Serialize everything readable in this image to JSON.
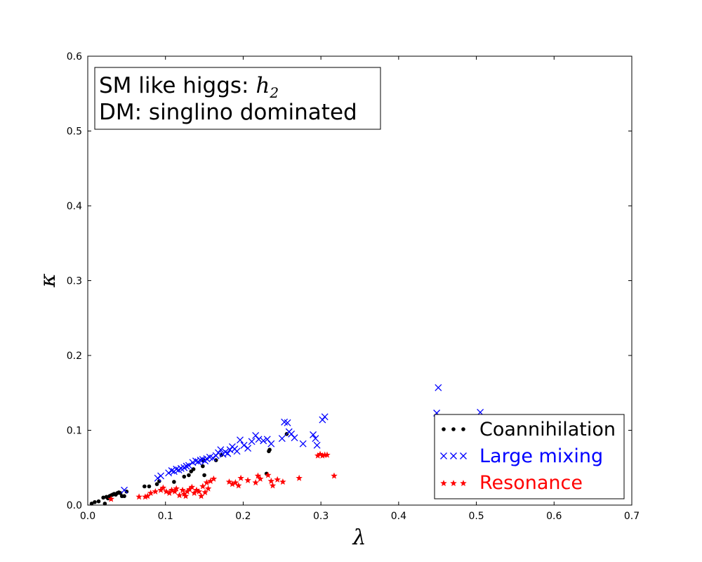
{
  "chart_data": {
    "type": "scatter",
    "title": "",
    "xlabel": "λ",
    "ylabel": "κ",
    "xlim": [
      0.0,
      0.7
    ],
    "ylim": [
      0.0,
      0.6
    ],
    "xticks": [
      "0.0",
      "0.1",
      "0.2",
      "0.3",
      "0.4",
      "0.5",
      "0.6",
      "0.7"
    ],
    "yticks": [
      "0.0",
      "0.1",
      "0.2",
      "0.3",
      "0.4",
      "0.5",
      "0.6"
    ],
    "grid": false,
    "annotation": {
      "line1_prefix": "SM like higgs: ",
      "line1_symbol": "h",
      "line1_subscript": "2",
      "line2": "DM: singlino dominated"
    },
    "legend": {
      "position": "lower-right",
      "entries": [
        "Coannihilation",
        "Large mixing",
        "Resonance"
      ]
    },
    "colors": {
      "Coannihilation": "#000000",
      "Large mixing": "#0000ff",
      "Resonance": "#ff0000"
    },
    "series": [
      {
        "name": "Coannihilation",
        "marker": "dot",
        "points": [
          [
            0.005,
            0.002
          ],
          [
            0.009,
            0.004
          ],
          [
            0.014,
            0.005
          ],
          [
            0.02,
            0.01
          ],
          [
            0.022,
            0.002
          ],
          [
            0.024,
            0.011
          ],
          [
            0.026,
            0.009
          ],
          [
            0.028,
            0.012
          ],
          [
            0.03,
            0.013
          ],
          [
            0.032,
            0.014
          ],
          [
            0.034,
            0.015
          ],
          [
            0.036,
            0.014
          ],
          [
            0.038,
            0.016
          ],
          [
            0.04,
            0.017
          ],
          [
            0.042,
            0.016
          ],
          [
            0.044,
            0.012
          ],
          [
            0.047,
            0.012
          ],
          [
            0.05,
            0.018
          ],
          [
            0.073,
            0.025
          ],
          [
            0.079,
            0.025
          ],
          [
            0.089,
            0.028
          ],
          [
            0.092,
            0.032
          ],
          [
            0.111,
            0.031
          ],
          [
            0.124,
            0.038
          ],
          [
            0.13,
            0.04
          ],
          [
            0.133,
            0.045
          ],
          [
            0.136,
            0.048
          ],
          [
            0.148,
            0.052
          ],
          [
            0.149,
            0.06
          ],
          [
            0.15,
            0.04
          ],
          [
            0.165,
            0.06
          ],
          [
            0.172,
            0.067
          ],
          [
            0.23,
            0.042
          ],
          [
            0.233,
            0.072
          ],
          [
            0.234,
            0.074
          ],
          [
            0.256,
            0.095
          ]
        ]
      },
      {
        "name": "Large mixing",
        "marker": "x",
        "points": [
          [
            0.047,
            0.02
          ],
          [
            0.09,
            0.036
          ],
          [
            0.094,
            0.039
          ],
          [
            0.104,
            0.043
          ],
          [
            0.108,
            0.046
          ],
          [
            0.111,
            0.045
          ],
          [
            0.114,
            0.048
          ],
          [
            0.117,
            0.047
          ],
          [
            0.12,
            0.049
          ],
          [
            0.124,
            0.05
          ],
          [
            0.127,
            0.052
          ],
          [
            0.13,
            0.053
          ],
          [
            0.135,
            0.057
          ],
          [
            0.139,
            0.059
          ],
          [
            0.142,
            0.058
          ],
          [
            0.145,
            0.06
          ],
          [
            0.148,
            0.061
          ],
          [
            0.151,
            0.059
          ],
          [
            0.153,
            0.062
          ],
          [
            0.157,
            0.064
          ],
          [
            0.161,
            0.063
          ],
          [
            0.165,
            0.066
          ],
          [
            0.168,
            0.07
          ],
          [
            0.171,
            0.074
          ],
          [
            0.174,
            0.068
          ],
          [
            0.177,
            0.071
          ],
          [
            0.18,
            0.069
          ],
          [
            0.183,
            0.074
          ],
          [
            0.186,
            0.078
          ],
          [
            0.189,
            0.075
          ],
          [
            0.192,
            0.072
          ],
          [
            0.196,
            0.087
          ],
          [
            0.201,
            0.08
          ],
          [
            0.206,
            0.076
          ],
          [
            0.211,
            0.085
          ],
          [
            0.216,
            0.093
          ],
          [
            0.22,
            0.088
          ],
          [
            0.226,
            0.086
          ],
          [
            0.231,
            0.088
          ],
          [
            0.236,
            0.082
          ],
          [
            0.25,
            0.089
          ],
          [
            0.253,
            0.111
          ],
          [
            0.257,
            0.11
          ],
          [
            0.259,
            0.098
          ],
          [
            0.262,
            0.095
          ],
          [
            0.266,
            0.09
          ],
          [
            0.277,
            0.082
          ],
          [
            0.29,
            0.094
          ],
          [
            0.293,
            0.089
          ],
          [
            0.295,
            0.08
          ],
          [
            0.302,
            0.114
          ],
          [
            0.305,
            0.118
          ],
          [
            0.449,
            0.123
          ],
          [
            0.451,
            0.157
          ],
          [
            0.505,
            0.124
          ]
        ]
      },
      {
        "name": "Resonance",
        "marker": "star",
        "points": [
          [
            0.03,
            0.008
          ],
          [
            0.066,
            0.011
          ],
          [
            0.074,
            0.011
          ],
          [
            0.077,
            0.012
          ],
          [
            0.081,
            0.016
          ],
          [
            0.087,
            0.018
          ],
          [
            0.094,
            0.02
          ],
          [
            0.097,
            0.023
          ],
          [
            0.101,
            0.018
          ],
          [
            0.105,
            0.016
          ],
          [
            0.108,
            0.02
          ],
          [
            0.112,
            0.018
          ],
          [
            0.114,
            0.022
          ],
          [
            0.118,
            0.013
          ],
          [
            0.122,
            0.02
          ],
          [
            0.124,
            0.015
          ],
          [
            0.126,
            0.012
          ],
          [
            0.128,
            0.018
          ],
          [
            0.131,
            0.021
          ],
          [
            0.134,
            0.024
          ],
          [
            0.137,
            0.016
          ],
          [
            0.14,
            0.02
          ],
          [
            0.143,
            0.018
          ],
          [
            0.146,
            0.012
          ],
          [
            0.148,
            0.025
          ],
          [
            0.151,
            0.017
          ],
          [
            0.153,
            0.03
          ],
          [
            0.155,
            0.022
          ],
          [
            0.158,
            0.032
          ],
          [
            0.162,
            0.035
          ],
          [
            0.182,
            0.031
          ],
          [
            0.186,
            0.028
          ],
          [
            0.19,
            0.03
          ],
          [
            0.194,
            0.026
          ],
          [
            0.197,
            0.036
          ],
          [
            0.206,
            0.033
          ],
          [
            0.216,
            0.03
          ],
          [
            0.219,
            0.039
          ],
          [
            0.222,
            0.035
          ],
          [
            0.232,
            0.04
          ],
          [
            0.236,
            0.032
          ],
          [
            0.238,
            0.026
          ],
          [
            0.244,
            0.034
          ],
          [
            0.251,
            0.031
          ],
          [
            0.272,
            0.036
          ],
          [
            0.296,
            0.066
          ],
          [
            0.299,
            0.068
          ],
          [
            0.302,
            0.066
          ],
          [
            0.305,
            0.067
          ],
          [
            0.308,
            0.067
          ],
          [
            0.317,
            0.039
          ]
        ]
      }
    ]
  }
}
